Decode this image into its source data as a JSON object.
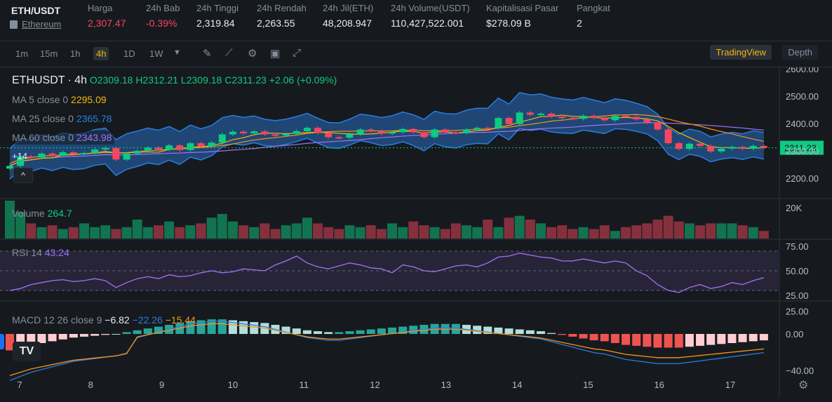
{
  "ticker": {
    "symbol": "ETH/USDT",
    "coin_link": "Ethereum",
    "stats": [
      {
        "key": "Harga",
        "value": "2,307.47",
        "color": "#f6465d"
      },
      {
        "key": "24h Bab",
        "value": "-0.39%",
        "color": "#f6465d"
      },
      {
        "key": "24h Tinggi",
        "value": "2,319.84",
        "color": "#eaecef"
      },
      {
        "key": "24h Rendah",
        "value": "2,263.55",
        "color": "#eaecef"
      },
      {
        "key": "24h Jil(ETH)",
        "value": "48,208.947",
        "color": "#eaecef"
      },
      {
        "key": "24h Volume(USDT)",
        "value": "110,427,522.001",
        "color": "#eaecef"
      },
      {
        "key": "Kapitalisasi Pasar",
        "value": "$278.09 B",
        "color": "#eaecef"
      },
      {
        "key": "Pangkat",
        "value": "2",
        "color": "#eaecef"
      }
    ]
  },
  "toolbar": {
    "timeframes": [
      "1m",
      "15m",
      "1h",
      "4h",
      "1D",
      "1W"
    ],
    "active_timeframe": "4h",
    "tradingview_label": "TradingView",
    "depth_label": "Depth"
  },
  "legend": {
    "pair": "ETHUSDT",
    "interval": "· 4h",
    "o": "O2309.18",
    "h": "H2312.21",
    "l": "L2309.18",
    "c": "C2311.23",
    "change": "+2.06 (+0.09%)",
    "ma5_label": "MA 5 close 0",
    "ma5_value": "2295.09",
    "ma25_label": "MA 25 close 0",
    "ma25_value": "2365.78",
    "ma60_label": "MA 60 close 0",
    "ma60_value": "2343.98",
    "plus_count": "+14",
    "volume_label": "Volume",
    "volume_value": "264.7",
    "rsi_label": "RSI 14",
    "rsi_value": "43.24",
    "macd_label": "MACD 12 26 close 9",
    "macd_v1": "−6.82",
    "macd_v2": "−22.26",
    "macd_v3": "−15.44"
  },
  "axes": {
    "price_ticks": [
      "2600.00",
      "2500.00",
      "2400.00",
      "2300.00",
      "2200.00"
    ],
    "current_price": "2311.23",
    "volume_tick": "20K",
    "rsi_ticks": [
      "75.00",
      "50.00",
      "25.00"
    ],
    "macd_ticks": [
      "25.00",
      "0.00",
      "−40.00"
    ],
    "x_ticks": [
      "7",
      "8",
      "9",
      "10",
      "11",
      "12",
      "13",
      "14",
      "15",
      "16",
      "17"
    ]
  },
  "colors": {
    "up": "#0ecb81",
    "down": "#f6465d",
    "ma5": "#f0b90b",
    "ma25": "#2a7de1",
    "ma60": "#a371f7",
    "accent": "#f0b90b"
  },
  "chart_data": {
    "type": "candlestick",
    "candles_close": [
      2245,
      2280,
      2276,
      2290,
      2282,
      2295,
      2288,
      2292,
      2305,
      2310,
      2268,
      2290,
      2300,
      2312,
      2305,
      2320,
      2303,
      2328,
      2316,
      2330,
      2360,
      2370,
      2364,
      2371,
      2360,
      2356,
      2362,
      2372,
      2384,
      2366,
      2350,
      2348,
      2361,
      2378,
      2372,
      2363,
      2368,
      2380,
      2368,
      2350,
      2378,
      2368,
      2365,
      2378,
      2384,
      2383,
      2420,
      2398,
      2440,
      2432,
      2436,
      2425,
      2420,
      2417,
      2428,
      2420,
      2412,
      2428,
      2424,
      2415,
      2404,
      2378,
      2328,
      2307,
      2326,
      2318,
      2298,
      2308,
      2314,
      2308,
      2318,
      2311
    ],
    "volume": [
      20,
      14,
      8,
      6,
      7,
      5,
      6,
      8,
      6,
      7,
      5,
      6,
      10,
      6,
      7,
      9,
      6,
      7,
      8,
      11,
      13,
      9,
      7,
      6,
      8,
      5,
      7,
      8,
      11,
      8,
      6,
      5,
      7,
      6,
      7,
      5,
      8,
      6,
      9,
      7,
      6,
      5,
      8,
      7,
      6,
      10,
      6,
      11,
      12,
      10,
      8,
      6,
      7,
      5,
      6,
      5,
      7,
      4,
      6,
      7,
      8,
      10,
      12,
      9,
      8,
      7,
      8,
      8,
      8,
      7,
      6,
      4
    ],
    "rsi": [
      30,
      32,
      36,
      38,
      40,
      41,
      39,
      40,
      42,
      40,
      33,
      38,
      42,
      44,
      42,
      46,
      44,
      45,
      48,
      50,
      48,
      49,
      52,
      51,
      50,
      56,
      60,
      65,
      58,
      54,
      52,
      55,
      58,
      56,
      53,
      52,
      48,
      56,
      54,
      50,
      49,
      52,
      55,
      56,
      54,
      58,
      64,
      65,
      68,
      66,
      64,
      63,
      60,
      60,
      62,
      60,
      58,
      60,
      58,
      50,
      45,
      36,
      30,
      28,
      33,
      36,
      32,
      34,
      38,
      36,
      40,
      43
    ],
    "macd_hist": [
      -18,
      -15,
      -12,
      -10,
      -8,
      -6,
      -4,
      -3,
      -2,
      -1,
      0,
      2,
      4,
      6,
      8,
      10,
      12,
      14,
      15,
      16,
      16,
      15,
      14,
      13,
      12,
      10,
      8,
      6,
      4,
      3,
      2,
      2,
      3,
      4,
      5,
      6,
      7,
      8,
      9,
      10,
      11,
      11,
      11,
      10,
      9,
      8,
      7,
      6,
      5,
      4,
      3,
      1,
      -1,
      -3,
      -5,
      -7,
      -8,
      -10,
      -12,
      -13,
      -14,
      -15,
      -15,
      -15,
      -14,
      -13,
      -12,
      -11,
      -10,
      -9,
      -8,
      -7
    ]
  }
}
